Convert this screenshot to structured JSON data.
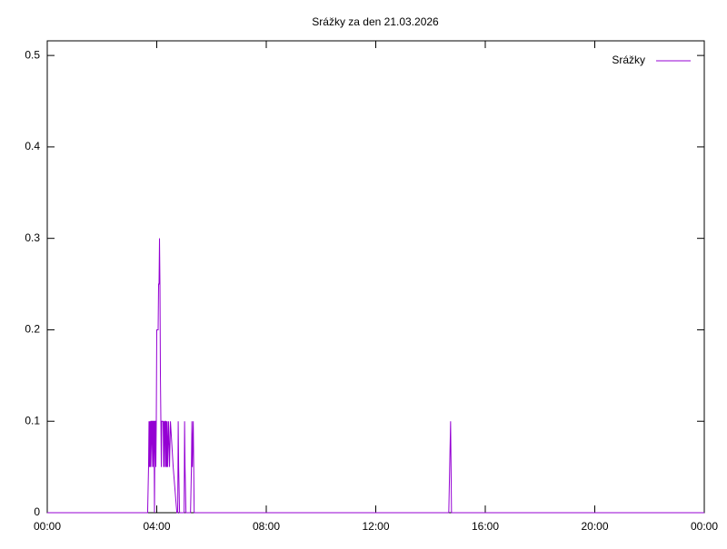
{
  "chart_data": {
    "type": "line",
    "title": "Srážky za den 21.03.2026",
    "x": [
      0,
      220,
      222,
      223,
      224,
      225,
      226,
      227,
      228,
      229,
      230,
      231,
      232,
      233,
      234,
      235,
      236,
      237,
      238,
      239,
      240,
      241,
      242,
      243,
      244,
      245,
      246,
      247,
      248,
      249,
      250,
      251,
      252,
      253,
      254,
      255,
      256,
      257,
      258,
      259,
      260,
      261,
      262,
      263,
      264,
      266,
      268,
      270,
      276,
      284,
      286,
      287,
      288,
      290,
      298,
      300,
      301,
      302,
      304,
      314,
      316,
      317,
      318,
      320,
      321,
      322,
      880,
      884,
      885,
      886,
      890,
      1440
    ],
    "series": [
      {
        "name": "Srážky",
        "color": "#9400d3",
        "values": [
          0,
          0,
          0.05,
          0.1,
          0.05,
          0.1,
          0.05,
          0.1,
          0.1,
          0.05,
          0.1,
          0.1,
          0.05,
          0.1,
          0.1,
          0,
          0.1,
          0.1,
          0.05,
          0.1,
          0.2,
          0.2,
          0.2,
          0.2,
          0.25,
          0.25,
          0.3,
          0.25,
          0.15,
          0.1,
          0.05,
          0.1,
          0.1,
          0.1,
          0.1,
          0.05,
          0.1,
          0.05,
          0.1,
          0.1,
          0.05,
          0.1,
          0.05,
          0.1,
          0.05,
          0.1,
          0.05,
          0.1,
          0.05,
          0,
          0,
          0.1,
          0.05,
          0,
          0,
          0,
          0.1,
          0.05,
          0,
          0,
          0.05,
          0.1,
          0.05,
          0.1,
          0.05,
          0,
          0,
          0.1,
          0.05,
          0,
          0,
          0
        ]
      }
    ],
    "xlim": [
      0,
      1440
    ],
    "xticks": [
      {
        "value": 0,
        "label": "00:00"
      },
      {
        "value": 240,
        "label": "04:00"
      },
      {
        "value": 480,
        "label": "08:00"
      },
      {
        "value": 720,
        "label": "12:00"
      },
      {
        "value": 960,
        "label": "16:00"
      },
      {
        "value": 1200,
        "label": "20:00"
      },
      {
        "value": 1440,
        "label": "00:00"
      }
    ],
    "ylim": [
      0,
      0.516
    ],
    "yticks": [
      0,
      0.1,
      0.2,
      0.3,
      0.4,
      0.5
    ],
    "legend": "top-right",
    "grid": false
  }
}
